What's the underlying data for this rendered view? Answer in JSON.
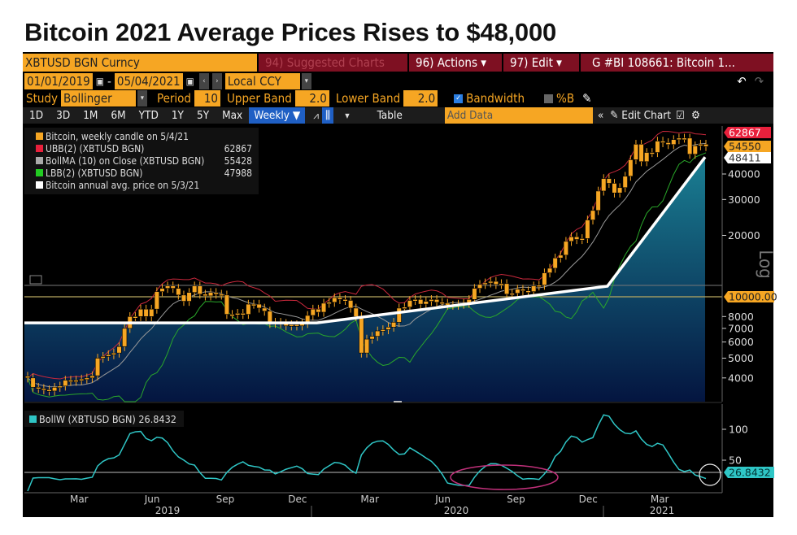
{
  "title": "Bitcoin 2021 Average Prices Rises to $48,000",
  "toolbar": {
    "ticker": "XBTUSD BGN Curncy",
    "suggested": "94) Suggested Charts",
    "actions": "96) Actions ▾",
    "edit": "97) Edit ▾",
    "chart_id": "G #BI 108661: Bitcoin 1...",
    "date_from": "01/01/2019",
    "date_to": "05/04/2021",
    "dash": "-",
    "currency": "Local CCY",
    "study_label": "Study",
    "study": "Bollinger",
    "period_label": "Period",
    "period": "10",
    "upper_label": "Upper Band",
    "upper": "2.0",
    "lower_label": "Lower Band",
    "lower": "2.0",
    "bandwidth": "Bandwidth",
    "bandwidth_checked": true,
    "pctb": "%B",
    "pctb_checked": false,
    "ranges": [
      "1D",
      "3D",
      "1M",
      "6M",
      "YTD",
      "1Y",
      "5Y",
      "Max"
    ],
    "frequency": "Weekly ▼",
    "table": "Table",
    "add_data_placeholder": "Add Data",
    "edit_chart": "Edit Chart"
  },
  "legend": [
    {
      "label": "Bitcoin, weekly candle on 5/4/21",
      "value": "",
      "color": "#f6a623"
    },
    {
      "label": "UBB(2) (XBTUSD BGN)",
      "value": "62867",
      "color": "#e8203c"
    },
    {
      "label": "BollMA (10)  on Close (XBTUSD BGN)",
      "value": "55428",
      "color": "#aaaaaa"
    },
    {
      "label": "LBB(2) (XBTUSD BGN)",
      "value": "47988",
      "color": "#22cc22"
    },
    {
      "label": "Bitcoin annual avg. price on 5/3/21",
      "value": "",
      "color": "#ffffff"
    }
  ],
  "bw_legend": {
    "label": "BollW (XBTUSD BGN) 26.8432",
    "color": "#2fc6c6"
  },
  "chart_data": [
    {
      "type": "candlestick",
      "scale": "log",
      "frequency": "weekly",
      "x_range": [
        "2019-01-01",
        "2021-05-04"
      ],
      "ylim": [
        3100,
        68000
      ],
      "closes": [
        4000,
        3600,
        3550,
        3500,
        3450,
        3600,
        3650,
        3900,
        3850,
        3900,
        3950,
        4000,
        4100,
        5000,
        5100,
        5200,
        5300,
        5700,
        7000,
        8000,
        8000,
        8700,
        8000,
        8700,
        10600,
        11000,
        11300,
        11000,
        10200,
        9500,
        10500,
        11300,
        10300,
        10100,
        10500,
        10300,
        10200,
        8200,
        8200,
        8300,
        8200,
        9200,
        9200,
        8800,
        8500,
        7400,
        7500,
        7400,
        7200,
        7300,
        7200,
        7400,
        8100,
        8700,
        8400,
        9300,
        9400,
        9900,
        9700,
        9600,
        8800,
        8000,
        5300,
        6200,
        6400,
        6800,
        6900,
        7100,
        7500,
        8800,
        8900,
        9600,
        9700,
        9200,
        9500,
        9700,
        9400,
        9300,
        9100,
        9100,
        9200,
        9300,
        9700,
        11000,
        11500,
        11700,
        11900,
        11500,
        11600,
        10300,
        10400,
        10900,
        10700,
        10600,
        11300,
        11400,
        13100,
        13800,
        15500,
        16000,
        18700,
        19700,
        19100,
        19300,
        23800,
        26500,
        33000,
        38000,
        36000,
        32300,
        34300,
        39000,
        47000,
        56000,
        46000,
        51000,
        51000,
        58000,
        57000,
        55800,
        59000,
        60000,
        60000,
        50000,
        55000,
        56000,
        54550
      ],
      "annual_avg": [
        {
          "date": "2019-01-01",
          "value": 7450
        },
        {
          "date": "2019-12-31",
          "value": 7450
        },
        {
          "date": "2020-12-31",
          "value": 11270
        },
        {
          "date": "2021-05-03",
          "value": 48411
        }
      ],
      "bollinger": {
        "period": 10,
        "upper": 2.0,
        "lower": 2.0,
        "last_upper": 62867,
        "last_ma": 55428,
        "last_lower": 47988
      },
      "y_ticks": [
        "40000",
        "30000",
        "20000",
        "8000",
        "7000",
        "6000",
        "5000",
        "4000"
      ],
      "markers": {
        "upper": "62867",
        "last": "54550",
        "avg": "48411",
        "ref": "10000.00"
      },
      "ref_line": 10000,
      "axis_label": "Log"
    },
    {
      "type": "line",
      "series": "BollW (XBTUSD BGN)",
      "last": "26.8432",
      "y_ticks": [
        "100",
        "50"
      ],
      "ylim": [
        0,
        140
      ],
      "x_months": [
        "Mar",
        "Jun",
        "Sep",
        "Dec",
        "Mar",
        "Jun",
        "Sep",
        "Dec",
        "Mar"
      ],
      "x_years": [
        "2019",
        "2020",
        "2021"
      ]
    }
  ]
}
